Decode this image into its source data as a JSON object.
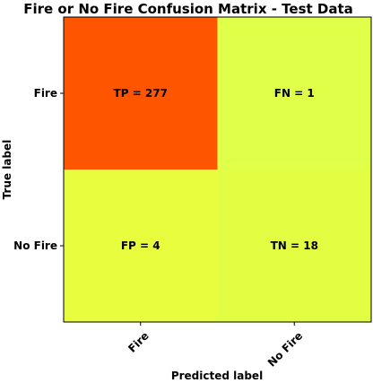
{
  "chart_data": {
    "type": "heatmap",
    "title": "Fire or No Fire Confusion Matrix - Test Data",
    "xlabel": "Predicted label",
    "ylabel": "True label",
    "x_categories": [
      "Fire",
      "No Fire"
    ],
    "y_categories": [
      "Fire",
      "No Fire"
    ],
    "cells": [
      [
        {
          "label": "TP = 277",
          "value": 277,
          "color": "#fd5500"
        },
        {
          "label": "FN = 1",
          "value": 1,
          "color": "#e0ff48"
        }
      ],
      [
        {
          "label": "FP = 4",
          "value": 4,
          "color": "#e7fd3e"
        },
        {
          "label": "TN = 18",
          "value": 18,
          "color": "#e3fd43"
        }
      ]
    ]
  }
}
